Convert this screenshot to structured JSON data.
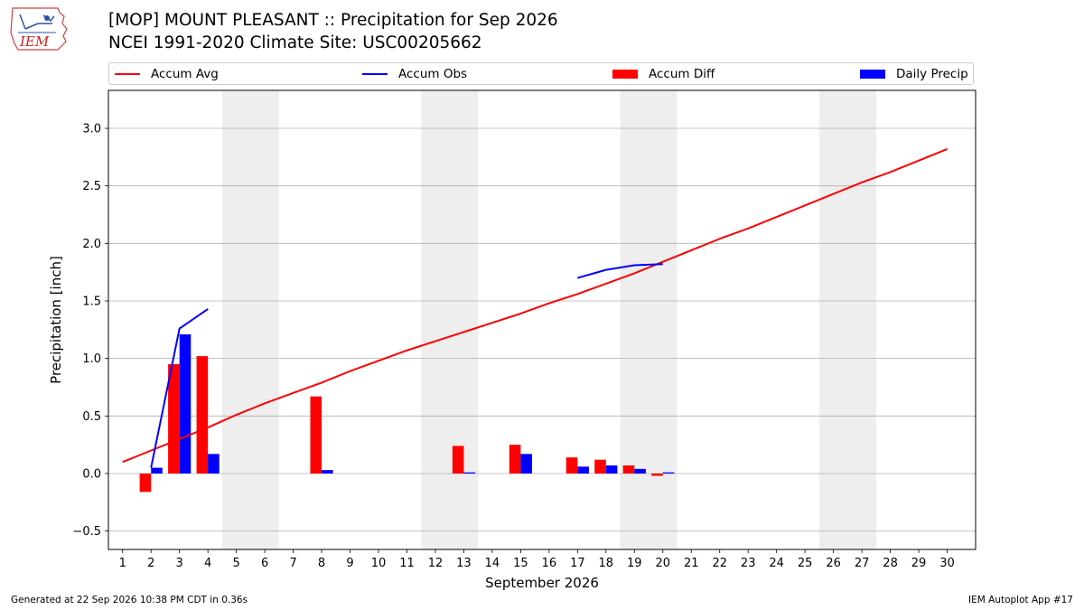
{
  "header": {
    "logo_text": "IEM",
    "title_line1": "[MOP] MOUNT PLEASANT :: Precipitation for Sep 2026",
    "title_line2": "NCEI 1991-2020 Climate Site: USC00205662"
  },
  "legend": {
    "items": [
      {
        "label": "Accum Avg",
        "kind": "line",
        "color": "#ff0000"
      },
      {
        "label": "Accum Obs",
        "kind": "line",
        "color": "#0000ff"
      },
      {
        "label": "Accum Diff",
        "kind": "box",
        "color": "#ff0000"
      },
      {
        "label": "Daily Precip",
        "kind": "box",
        "color": "#0000ff"
      }
    ],
    "placement": "top"
  },
  "footer": {
    "generated": "Generated at 22 Sep 2026 10:38 PM CDT in 0.36s",
    "app": "IEM Autoplot App #17"
  },
  "chart_data": {
    "type": "bar",
    "xlabel": "September 2026",
    "ylabel": "Precipitation [inch]",
    "xlim": [
      0.5,
      31.0
    ],
    "ylim": [
      -0.66,
      3.33
    ],
    "yticks": [
      -0.5,
      0.0,
      0.5,
      1.0,
      1.5,
      2.0,
      2.5,
      3.0
    ],
    "ytick_labels": [
      "−0.5",
      "0.0",
      "0.5",
      "1.0",
      "1.5",
      "2.0",
      "2.5",
      "3.0"
    ],
    "x": [
      1,
      2,
      3,
      4,
      5,
      6,
      7,
      8,
      9,
      10,
      11,
      12,
      13,
      14,
      15,
      16,
      17,
      18,
      19,
      20,
      21,
      22,
      23,
      24,
      25,
      26,
      27,
      28,
      29,
      30
    ],
    "grid": "horizontal",
    "weekend_shading": [
      [
        4.5,
        6.5
      ],
      [
        11.5,
        13.5
      ],
      [
        18.5,
        20.5
      ],
      [
        25.5,
        27.5
      ]
    ],
    "weekend_color": "#eeeeee",
    "series": [
      {
        "name": "Accum Avg",
        "kind": "line",
        "color": "#ff0000",
        "x": [
          1,
          2,
          3,
          4,
          5,
          6,
          7,
          8,
          9,
          10,
          11,
          12,
          13,
          14,
          15,
          16,
          17,
          18,
          19,
          20,
          21,
          22,
          23,
          24,
          25,
          26,
          27,
          28,
          29,
          30
        ],
        "values": [
          0.1,
          0.2,
          0.3,
          0.4,
          0.51,
          0.61,
          0.7,
          0.79,
          0.89,
          0.98,
          1.07,
          1.15,
          1.23,
          1.31,
          1.39,
          1.48,
          1.56,
          1.65,
          1.74,
          1.84,
          1.94,
          2.04,
          2.13,
          2.23,
          2.33,
          2.43,
          2.53,
          2.62,
          2.72,
          2.82
        ]
      },
      {
        "name": "Accum Obs",
        "kind": "line",
        "color": "#0000ff",
        "segments": [
          {
            "x": [
              2,
              3,
              4
            ],
            "values": [
              0.05,
              1.26,
              1.43
            ]
          },
          {
            "x": [
              17,
              18,
              19,
              20
            ],
            "values": [
              1.7,
              1.77,
              1.81,
              1.82
            ]
          }
        ]
      },
      {
        "name": "Accum Diff",
        "kind": "bar",
        "color": "#ff0000",
        "offset": -0.2,
        "x": [
          2,
          3,
          4,
          8,
          13,
          15,
          17,
          18,
          19,
          20
        ],
        "values": [
          -0.16,
          0.95,
          1.02,
          0.67,
          0.24,
          0.25,
          0.14,
          0.12,
          0.07,
          -0.02
        ]
      },
      {
        "name": "Daily Precip",
        "kind": "bar",
        "color": "#0000ff",
        "offset": 0.2,
        "x": [
          2,
          3,
          4,
          8,
          13,
          15,
          17,
          18,
          19,
          20
        ],
        "values": [
          0.05,
          1.21,
          0.17,
          0.03,
          0.01,
          0.17,
          0.06,
          0.07,
          0.04,
          0.01
        ]
      }
    ]
  }
}
